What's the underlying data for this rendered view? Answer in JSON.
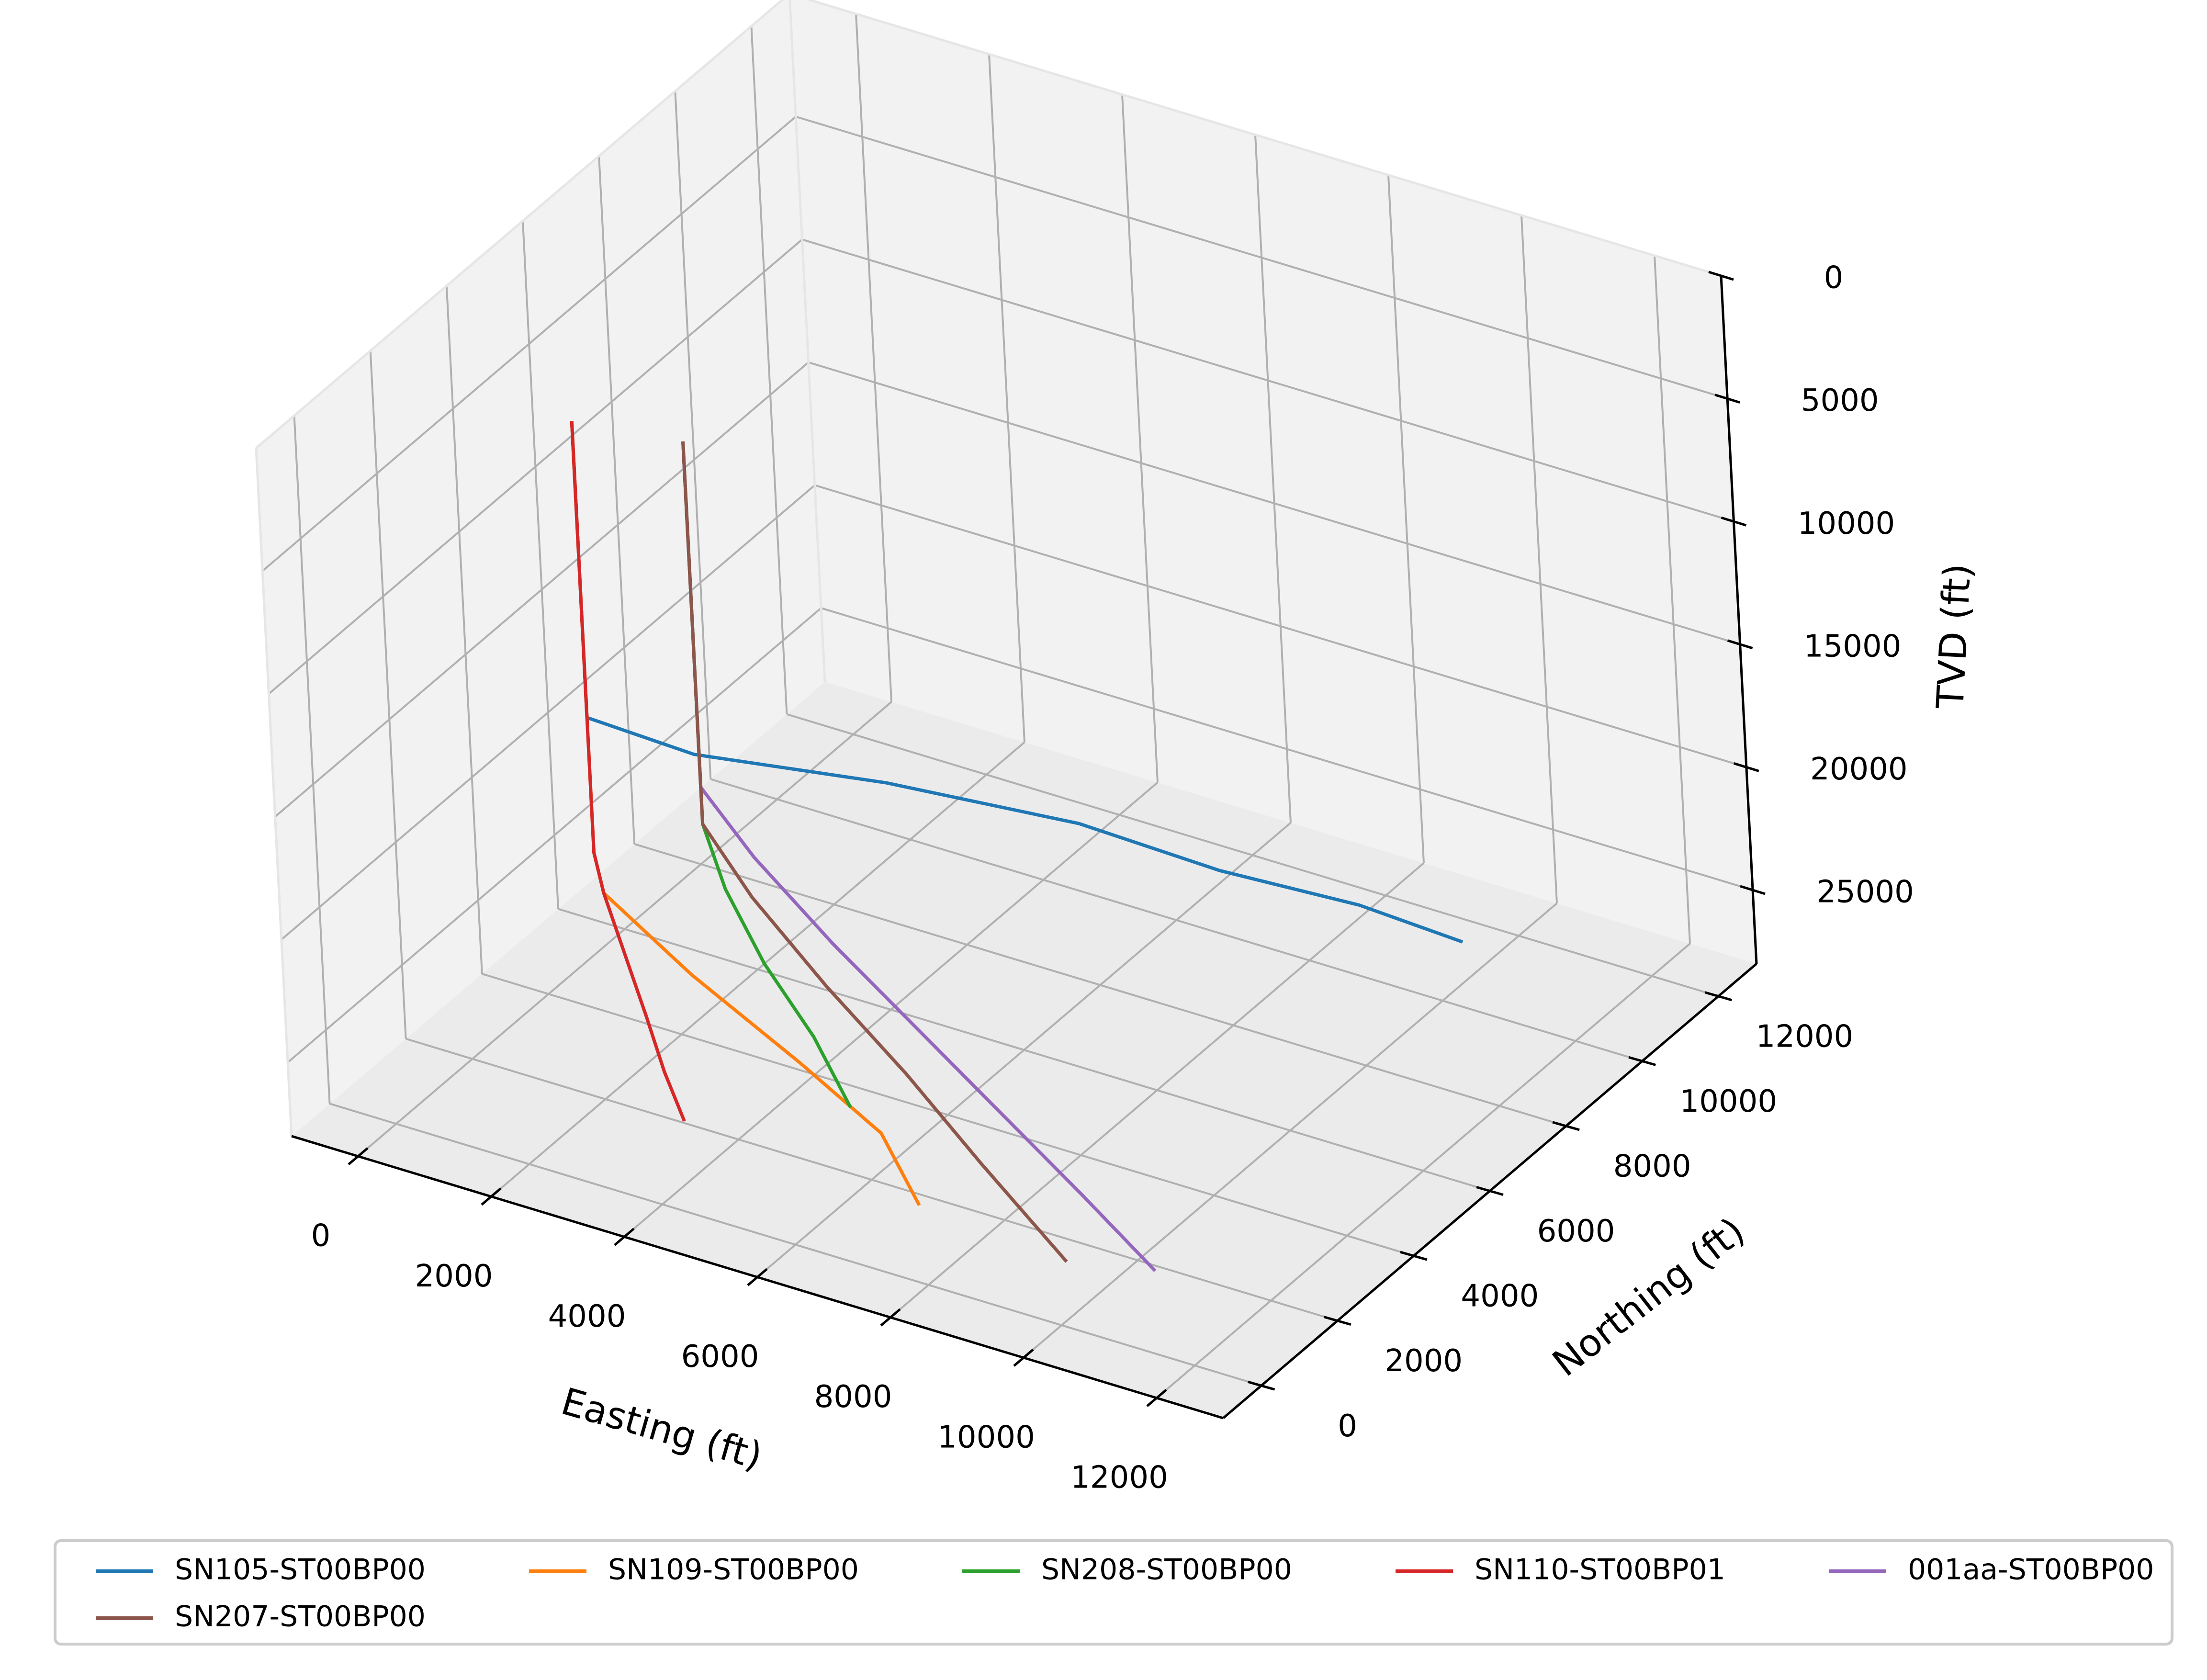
{
  "chart_data": {
    "type": "line",
    "projection": "3d",
    "xlabel": "Easting (ft)",
    "ylabel": "Northing (ft)",
    "zlabel": "TVD (ft)",
    "xlim": [
      -1000,
      13000
    ],
    "ylim": [
      -1000,
      13000
    ],
    "zlim": [
      28000,
      0
    ],
    "z_inverted": true,
    "grid": true,
    "legend_position": "bottom",
    "legend_columns": 5,
    "xticks": [
      "0",
      "2000",
      "4000",
      "6000",
      "8000",
      "10000",
      "12000"
    ],
    "yticks": [
      "0",
      "2000",
      "4000",
      "6000",
      "8000",
      "10000",
      "12000"
    ],
    "zticks": [
      "0",
      "5000",
      "10000",
      "15000",
      "20000",
      "25000"
    ],
    "series": [
      {
        "name": "SN105-ST00BP00",
        "color": "#1f77b4",
        "points": [
          [
            500,
            4500,
            5000
          ],
          [
            500,
            4500,
            17000
          ],
          [
            1500,
            5500,
            19000
          ],
          [
            3500,
            7000,
            20500
          ],
          [
            5500,
            8500,
            22500
          ],
          [
            7000,
            9500,
            24500
          ],
          [
            8500,
            10500,
            26000
          ],
          [
            9600,
            11200,
            27500
          ]
        ]
      },
      {
        "name": "SN109-ST00BP00",
        "color": "#ff7f0e",
        "points": [
          [
            500,
            4500,
            5000
          ],
          [
            500,
            4500,
            22500
          ],
          [
            800,
            4200,
            23500
          ],
          [
            2500,
            3500,
            24500
          ],
          [
            4500,
            2800,
            25500
          ],
          [
            6000,
            2300,
            26500
          ],
          [
            7000,
            1500,
            27500
          ]
        ]
      },
      {
        "name": "SN208-ST00BP00",
        "color": "#2ca02c",
        "points": [
          [
            2000,
            4800,
            5000
          ],
          [
            2000,
            4800,
            20500
          ],
          [
            2600,
            4300,
            22000
          ],
          [
            3500,
            3700,
            23500
          ],
          [
            4500,
            3200,
            25000
          ],
          [
            5300,
            2700,
            26500
          ]
        ]
      },
      {
        "name": "SN110-ST00BP01",
        "color": "#d62728",
        "points": [
          [
            500,
            4500,
            5000
          ],
          [
            500,
            4500,
            22500
          ],
          [
            800,
            4200,
            23500
          ],
          [
            1500,
            3500,
            24500
          ],
          [
            2200,
            2800,
            25500
          ],
          [
            2800,
            2200,
            26500
          ],
          [
            3300,
            1800,
            27500
          ]
        ]
      },
      {
        "name": "001aa-ST00BP00",
        "color": "#9467bd",
        "points": [
          [
            2000,
            4800,
            5000
          ],
          [
            2000,
            4800,
            19000
          ],
          [
            3000,
            4400,
            20500
          ],
          [
            4500,
            3800,
            22000
          ],
          [
            6000,
            3300,
            23500
          ],
          [
            7500,
            2800,
            25000
          ],
          [
            9000,
            2300,
            26500
          ],
          [
            10300,
            1900,
            28000
          ]
        ]
      },
      {
        "name": "SN207-ST00BP00",
        "color": "#8c564b",
        "points": [
          [
            2000,
            4800,
            5000
          ],
          [
            2000,
            4800,
            20500
          ],
          [
            3000,
            4300,
            22000
          ],
          [
            4500,
            3600,
            23500
          ],
          [
            6000,
            3000,
            25000
          ],
          [
            7500,
            2300,
            26500
          ],
          [
            9200,
            1500,
            28000
          ]
        ]
      }
    ]
  }
}
